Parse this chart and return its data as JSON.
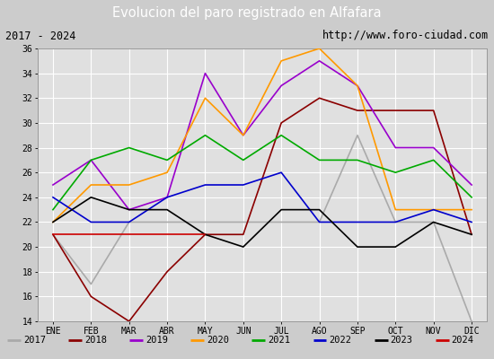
{
  "title": "Evolucion del paro registrado en Alfafara",
  "subtitle_left": "2017 - 2024",
  "subtitle_right": "http://www.foro-ciudad.com",
  "months": [
    "ENE",
    "FEB",
    "MAR",
    "ABR",
    "MAY",
    "JUN",
    "JUL",
    "AGO",
    "SEP",
    "OCT",
    "NOV",
    "DIC"
  ],
  "ylim": [
    14,
    36
  ],
  "yticks": [
    14,
    16,
    18,
    20,
    22,
    24,
    26,
    28,
    30,
    32,
    34,
    36
  ],
  "series_order": [
    "2017",
    "2018",
    "2019",
    "2020",
    "2021",
    "2022",
    "2023",
    "2024"
  ],
  "series_data": {
    "2017": [
      21,
      17,
      22,
      22,
      22,
      22,
      22,
      22,
      29,
      22,
      22,
      14
    ],
    "2018": [
      21,
      16,
      14,
      18,
      21,
      21,
      30,
      32,
      31,
      31,
      31,
      21
    ],
    "2019": [
      25,
      27,
      23,
      24,
      34,
      29,
      33,
      35,
      33,
      28,
      28,
      25
    ],
    "2020": [
      22,
      25,
      25,
      26,
      32,
      29,
      35,
      36,
      33,
      23,
      23,
      23
    ],
    "2021": [
      23,
      27,
      28,
      27,
      29,
      27,
      29,
      27,
      27,
      26,
      27,
      24
    ],
    "2022": [
      24,
      22,
      22,
      24,
      25,
      25,
      26,
      22,
      22,
      22,
      23,
      22
    ],
    "2023": [
      22,
      24,
      23,
      23,
      21,
      20,
      23,
      23,
      20,
      20,
      22,
      21
    ],
    "2024": [
      21,
      21,
      21,
      21,
      21,
      null,
      null,
      null,
      null,
      null,
      null,
      null
    ]
  },
  "colors": {
    "2017": "#aaaaaa",
    "2018": "#8b0000",
    "2019": "#9900cc",
    "2020": "#ff9900",
    "2021": "#00aa00",
    "2022": "#0000cc",
    "2023": "#000000",
    "2024": "#cc0000"
  },
  "header_bg": "#3366cc",
  "header_text_color": "#ffffff",
  "subheader_bg": "#ffffff",
  "subheader_border_color": "#3366cc",
  "plot_bg": "#e0e0e0",
  "grid_color": "#ffffff",
  "legend_bg": "#f0f0f0",
  "legend_border_color": "#3366cc",
  "fig_bg": "#cccccc"
}
